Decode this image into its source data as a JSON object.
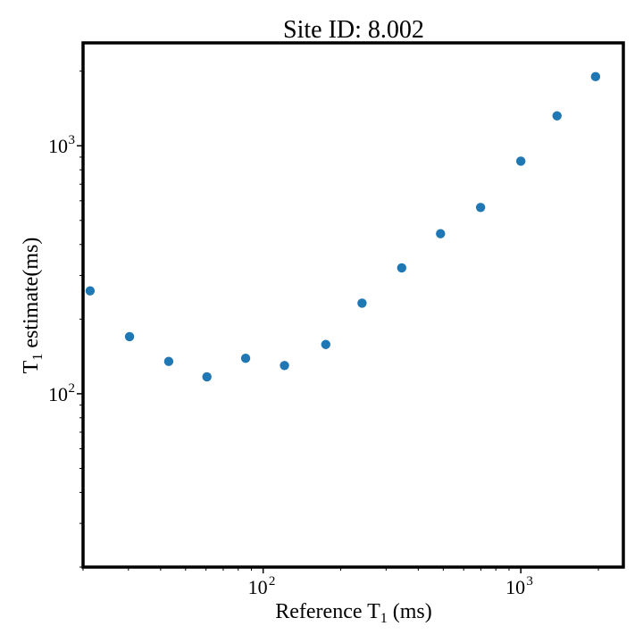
{
  "chart_data": {
    "type": "scatter",
    "title": "Site ID: 8.002",
    "xlabel": {
      "pre": "Reference T",
      "sub": "1",
      "post": " (ms)"
    },
    "ylabel": {
      "pre": "T",
      "sub": "1",
      "post": " estimate(ms)"
    },
    "xscale": "log",
    "yscale": "log",
    "xlim": [
      20,
      2500
    ],
    "ylim": [
      20,
      2600
    ],
    "grid": false,
    "color": "#1f77b4",
    "xticks": [
      {
        "base": "10",
        "exp": "2",
        "value": 100
      },
      {
        "base": "10",
        "exp": "3",
        "value": 1000
      }
    ],
    "yticks": [
      {
        "base": "10",
        "exp": "2",
        "value": 100
      },
      {
        "base": "10",
        "exp": "3",
        "value": 1000
      }
    ],
    "points": [
      {
        "x": 21.3,
        "y": 260
      },
      {
        "x": 30.3,
        "y": 170
      },
      {
        "x": 43,
        "y": 135
      },
      {
        "x": 60.5,
        "y": 117
      },
      {
        "x": 85.5,
        "y": 139
      },
      {
        "x": 121,
        "y": 130
      },
      {
        "x": 175,
        "y": 158
      },
      {
        "x": 242,
        "y": 232
      },
      {
        "x": 345,
        "y": 322
      },
      {
        "x": 488,
        "y": 442
      },
      {
        "x": 698,
        "y": 564
      },
      {
        "x": 1000,
        "y": 867
      },
      {
        "x": 1382,
        "y": 1320
      },
      {
        "x": 1950,
        "y": 1900
      }
    ]
  }
}
